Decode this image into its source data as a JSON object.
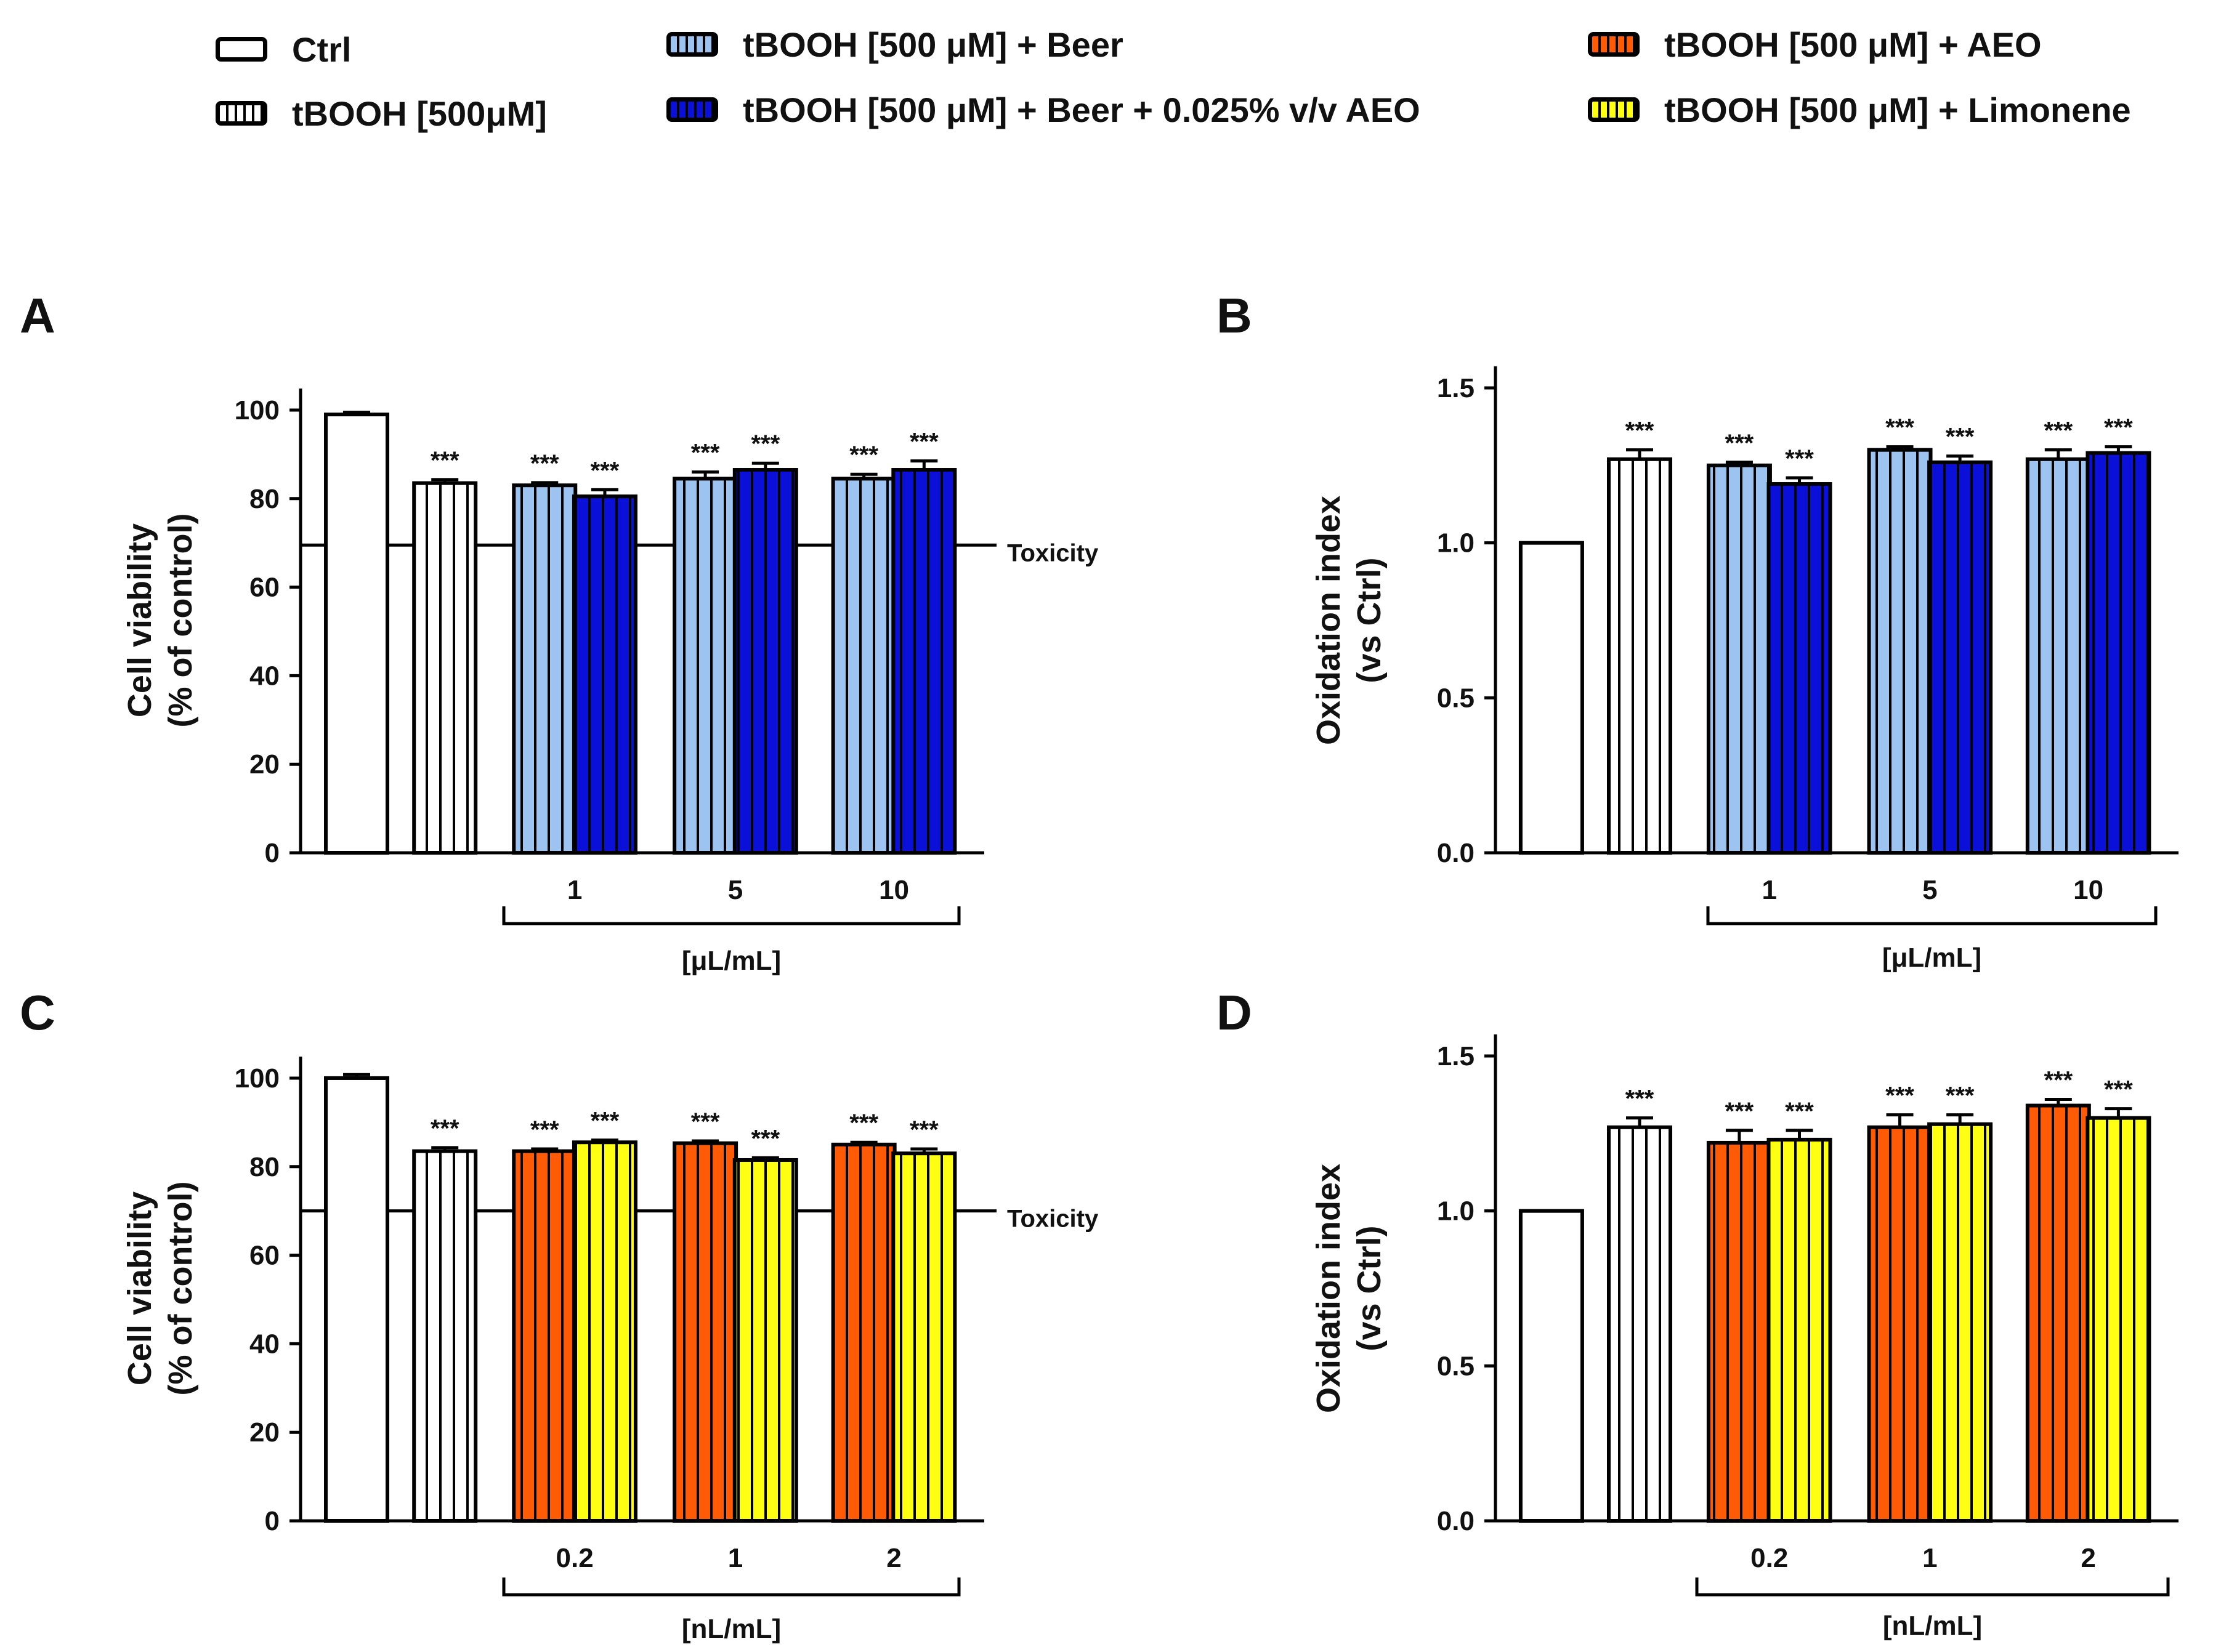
{
  "legend": {
    "items": [
      {
        "label": "Ctrl",
        "fill": "#ffffff",
        "stripes": false
      },
      {
        "label": "tBOOH [500μM]",
        "fill": "#ffffff",
        "stripes": true
      },
      {
        "label": "tBOOH [500 μM] + Beer",
        "fill": "#9dc3f0",
        "stripes": true
      },
      {
        "label": "tBOOH [500 μM] + Beer + 0.025% v/v AEO",
        "fill": "#0a10d8",
        "stripes": true
      },
      {
        "label": "tBOOH [500 μM] + AEO",
        "fill": "#ff5a05",
        "stripes": true
      },
      {
        "label": "tBOOH [500 μM] + Limonene",
        "fill": "#ffff14",
        "stripes": true
      }
    ]
  },
  "colors": {
    "ctrl": "#ffffff",
    "tbooh": "#ffffff",
    "beer": "#9dc3f0",
    "beer_aeo": "#0a10d8",
    "aeo": "#ff5a05",
    "limonene": "#ffff14"
  },
  "chart_data": [
    {
      "panel": "A",
      "type": "bar",
      "ylabel": [
        "Cell viability",
        "(% of control)"
      ],
      "ylim": [
        0,
        105
      ],
      "yticks": [
        0,
        20,
        40,
        60,
        80,
        100
      ],
      "threshold": {
        "value": 69.5,
        "label": "Toxicity"
      },
      "group_labels": [
        "1",
        "5",
        "10"
      ],
      "bracket_label": "[μL/mL]",
      "series": [
        {
          "name": "Ctrl",
          "color_key": "ctrl",
          "value": 99,
          "error": 0.5,
          "sig": ""
        },
        {
          "name": "tBOOH [500μM]",
          "color_key": "tbooh",
          "value": 83.5,
          "error": 0.8,
          "sig": "***"
        },
        {
          "name": "tBOOH [500 μM] + Beer, 1",
          "color_key": "beer",
          "value": 83,
          "error": 0.6,
          "sig": "***"
        },
        {
          "name": "tBOOH [500 μM] + Beer + 0.025% v/v AEO, 1",
          "color_key": "beer_aeo",
          "value": 80.5,
          "error": 1.5,
          "sig": "***"
        },
        {
          "name": "tBOOH [500 μM] + Beer, 5",
          "color_key": "beer",
          "value": 84.5,
          "error": 1.5,
          "sig": "***"
        },
        {
          "name": "tBOOH [500 μM] + Beer + 0.025% v/v AEO, 5",
          "color_key": "beer_aeo",
          "value": 86.5,
          "error": 1.5,
          "sig": "***"
        },
        {
          "name": "tBOOH [500 μM] + Beer, 10",
          "color_key": "beer",
          "value": 84.5,
          "error": 1.0,
          "sig": "***"
        },
        {
          "name": "tBOOH [500 μM] + Beer + 0.025% v/v AEO, 10",
          "color_key": "beer_aeo",
          "value": 86.5,
          "error": 2.0,
          "sig": "***"
        }
      ]
    },
    {
      "panel": "B",
      "type": "bar",
      "ylabel": [
        "Oxidation index",
        "(vs Ctrl)"
      ],
      "ylim": [
        0,
        1.5
      ],
      "yticks": [
        0.0,
        0.5,
        1.0,
        1.5
      ],
      "threshold": null,
      "group_labels": [
        "1",
        "5",
        "10"
      ],
      "bracket_label": "[μL/mL]",
      "series": [
        {
          "name": "Ctrl",
          "color_key": "ctrl",
          "value": 1.0,
          "error": 0.0,
          "sig": ""
        },
        {
          "name": "tBOOH [500μM]",
          "color_key": "tbooh",
          "value": 1.27,
          "error": 0.03,
          "sig": "***"
        },
        {
          "name": "tBOOH [500 μM] + Beer, 1",
          "color_key": "beer",
          "value": 1.25,
          "error": 0.01,
          "sig": "***"
        },
        {
          "name": "tBOOH [500 μM] + Beer + 0.025% v/v AEO, 1",
          "color_key": "beer_aeo",
          "value": 1.19,
          "error": 0.02,
          "sig": "***"
        },
        {
          "name": "tBOOH [500 μM] + Beer, 5",
          "color_key": "beer",
          "value": 1.3,
          "error": 0.01,
          "sig": "***"
        },
        {
          "name": "tBOOH [500 μM] + Beer + 0.025% v/v AEO, 5",
          "color_key": "beer_aeo",
          "value": 1.26,
          "error": 0.02,
          "sig": "***"
        },
        {
          "name": "tBOOH [500 μM] + Beer, 10",
          "color_key": "beer",
          "value": 1.27,
          "error": 0.03,
          "sig": "***"
        },
        {
          "name": "tBOOH [500 μM] + Beer + 0.025% v/v AEO, 10",
          "color_key": "beer_aeo",
          "value": 1.29,
          "error": 0.02,
          "sig": "***"
        }
      ]
    },
    {
      "panel": "C",
      "type": "bar",
      "ylabel": [
        "Cell viability",
        "(% of control)"
      ],
      "ylim": [
        0,
        105
      ],
      "yticks": [
        0,
        20,
        40,
        60,
        80,
        100
      ],
      "threshold": {
        "value": 70,
        "label": "Toxicity"
      },
      "group_labels": [
        "0.2",
        "1",
        "2"
      ],
      "bracket_label": "[nL/mL]",
      "series": [
        {
          "name": "Ctrl",
          "color_key": "ctrl",
          "value": 100,
          "error": 0.8,
          "sig": ""
        },
        {
          "name": "tBOOH [500μM]",
          "color_key": "tbooh",
          "value": 83.5,
          "error": 0.8,
          "sig": "***"
        },
        {
          "name": "tBOOH [500 μM] + AEO, 0.2",
          "color_key": "aeo",
          "value": 83.5,
          "error": 0.5,
          "sig": "***"
        },
        {
          "name": "tBOOH [500 μM] + Limonene, 0.2",
          "color_key": "limonene",
          "value": 85.5,
          "error": 0.5,
          "sig": "***"
        },
        {
          "name": "tBOOH [500 μM] + AEO, 1",
          "color_key": "aeo",
          "value": 85.3,
          "error": 0.5,
          "sig": "***"
        },
        {
          "name": "tBOOH [500 μM] + Limonene, 1",
          "color_key": "limonene",
          "value": 81.5,
          "error": 0.5,
          "sig": "***"
        },
        {
          "name": "tBOOH [500 μM] + AEO, 2",
          "color_key": "aeo",
          "value": 85,
          "error": 0.5,
          "sig": "***"
        },
        {
          "name": "tBOOH [500 μM] + Limonene, 2",
          "color_key": "limonene",
          "value": 83,
          "error": 1.0,
          "sig": "***"
        }
      ]
    },
    {
      "panel": "D",
      "type": "bar",
      "ylabel": [
        "Oxidation index",
        "(vs Ctrl)"
      ],
      "ylim": [
        0,
        1.5
      ],
      "yticks": [
        0.0,
        0.5,
        1.0,
        1.5
      ],
      "threshold": null,
      "group_labels": [
        "0.2",
        "1",
        "2"
      ],
      "bracket_label": "[nL/mL]",
      "series": [
        {
          "name": "Ctrl",
          "color_key": "ctrl",
          "value": 1.0,
          "error": 0.0,
          "sig": ""
        },
        {
          "name": "tBOOH [500μM]",
          "color_key": "tbooh",
          "value": 1.27,
          "error": 0.03,
          "sig": "***"
        },
        {
          "name": "tBOOH [500 μM] + AEO, 0.2",
          "color_key": "aeo",
          "value": 1.22,
          "error": 0.04,
          "sig": "***"
        },
        {
          "name": "tBOOH [500 μM] + Limonene, 0.2",
          "color_key": "limonene",
          "value": 1.23,
          "error": 0.03,
          "sig": "***"
        },
        {
          "name": "tBOOH [500 μM] + AEO, 1",
          "color_key": "aeo",
          "value": 1.27,
          "error": 0.04,
          "sig": "***"
        },
        {
          "name": "tBOOH [500 μM] + Limonene, 1",
          "color_key": "limonene",
          "value": 1.28,
          "error": 0.03,
          "sig": "***"
        },
        {
          "name": "tBOOH [500 μM] + AEO, 2",
          "color_key": "aeo",
          "value": 1.34,
          "error": 0.02,
          "sig": "***"
        },
        {
          "name": "tBOOH [500 μM] + Limonene, 2",
          "color_key": "limonene",
          "value": 1.3,
          "error": 0.03,
          "sig": "***"
        }
      ]
    }
  ]
}
